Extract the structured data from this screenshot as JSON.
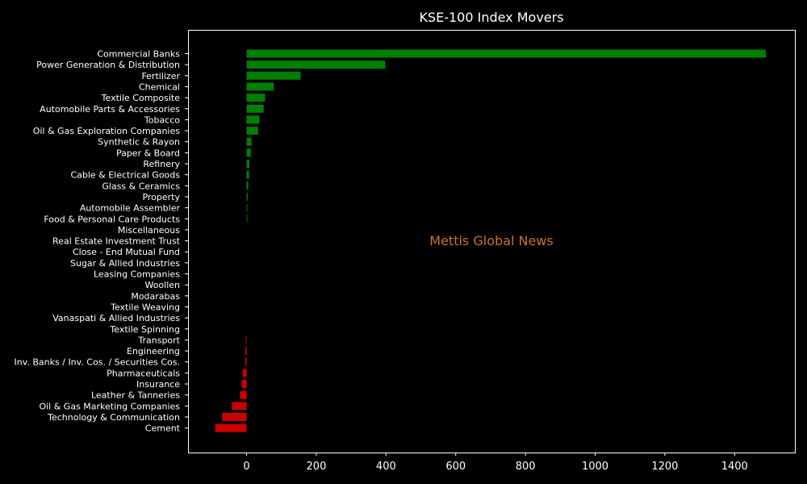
{
  "chart_data": {
    "type": "bar",
    "orientation": "horizontal",
    "title": "KSE-100 Index Movers",
    "watermark": "Mettis Global News",
    "xlabel": "",
    "ylabel": "",
    "xlim": [
      -168,
      1573
    ],
    "xticks": [
      0,
      200,
      400,
      600,
      800,
      1000,
      1200,
      1400
    ],
    "grid": false,
    "colors": {
      "background": "#000000",
      "positive": "#008000",
      "negative": "#cc0000",
      "text": "#ffffff",
      "watermark": "#c8742c"
    },
    "categories": [
      "Commercial Banks",
      "Power Generation & Distribution",
      "Fertilizer",
      "Chemical",
      "Textile Composite",
      "Automobile Parts & Accessories",
      "Tobacco",
      "Oil & Gas Exploration Companies",
      "Synthetic & Rayon",
      "Paper & Board",
      "Refinery",
      "Cable & Electrical Goods",
      "Glass & Ceramics",
      "Property",
      "Automobile Assembler",
      "Food & Personal Care Products",
      "Miscellaneous",
      "Real Estate Investment Trust",
      "Close - End Mutual Fund",
      "Sugar & Allied Industries",
      "Leasing Companies",
      "Woollen",
      "Modarabas",
      "Textile Weaving",
      "Vanaspati & Allied Industries",
      "Textile Spinning",
      "Transport",
      "Engineering",
      "Inv. Banks / Inv. Cos. / Securities Cos.",
      "Pharmaceuticals",
      "Insurance",
      "Leather & Tanneries",
      "Oil & Gas Marketing Companies",
      "Technology & Communication",
      "Cement"
    ],
    "values": [
      1490,
      398,
      155,
      78,
      53,
      49,
      37,
      33,
      14,
      12,
      8,
      7,
      5,
      3,
      2,
      1,
      0,
      0,
      0,
      0,
      0,
      0,
      0,
      0,
      0,
      0,
      -2,
      -4,
      -4,
      -11,
      -14,
      -19,
      -42,
      -70,
      -90
    ]
  }
}
